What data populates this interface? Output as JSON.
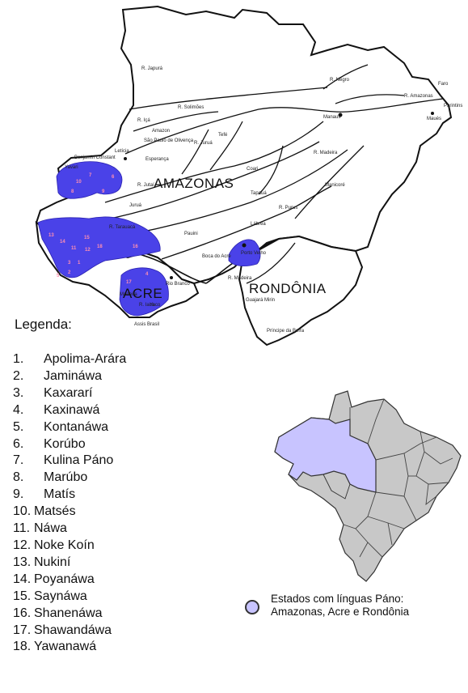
{
  "map": {
    "state_labels": {
      "amazonas": "AMAZONAS",
      "acre": "ACRE",
      "rondonia": "RONDÔNIA"
    },
    "places": [
      {
        "key": "japura",
        "label": "R. Japurá"
      },
      {
        "key": "solimoes",
        "label": "R. Solimões"
      },
      {
        "key": "ica",
        "label": "R. Içá"
      },
      {
        "key": "amazon",
        "label": "Amazon"
      },
      {
        "key": "spolivenca",
        "label": "São Paulo de Olivença"
      },
      {
        "key": "benjamin",
        "label": "Benjamin Constant"
      },
      {
        "key": "leticia",
        "label": "Letícia"
      },
      {
        "key": "esperanca",
        "label": "Esperança"
      },
      {
        "key": "jutai",
        "label": "R. Jutaí"
      },
      {
        "key": "jurua",
        "label": "R. Juruá"
      },
      {
        "key": "tefe",
        "label": "Tefé"
      },
      {
        "key": "coari",
        "label": "Coari"
      },
      {
        "key": "tapaua",
        "label": "Tapauá"
      },
      {
        "key": "purus",
        "label": "R. Purus"
      },
      {
        "key": "labrea",
        "label": "Lábrea"
      },
      {
        "key": "jurua2",
        "label": "Juruá"
      },
      {
        "key": "pauini",
        "label": "Pauini"
      },
      {
        "key": "boca",
        "label": "Boca do Acre"
      },
      {
        "key": "rioBranco",
        "label": "Rio Branco"
      },
      {
        "key": "pvelho",
        "label": "Porto Velho"
      },
      {
        "key": "manaus",
        "label": "Manaus"
      },
      {
        "key": "negro",
        "label": "R. Negro"
      },
      {
        "key": "ramazonas",
        "label": "R. Amazonas"
      },
      {
        "key": "faro",
        "label": "Faro"
      },
      {
        "key": "parintins",
        "label": "Parintins"
      },
      {
        "key": "maues",
        "label": "Maués"
      },
      {
        "key": "madeira",
        "label": "R. Madeira"
      },
      {
        "key": "manicore",
        "label": "Manicoré"
      },
      {
        "key": "rmadeira2",
        "label": "R. Madeira"
      },
      {
        "key": "guajara",
        "label": "Guajará Mirin"
      },
      {
        "key": "principe",
        "label": "Príncipe da Beira"
      },
      {
        "key": "assis",
        "label": "Assis Brasil"
      },
      {
        "key": "yavari",
        "label": "Yavari"
      },
      {
        "key": "iaco",
        "label": "R. Iaco"
      },
      {
        "key": "madeira_s",
        "label": "Madeira"
      },
      {
        "key": "tarauaca",
        "label": "R. Tarauacá"
      },
      {
        "key": "yaco",
        "label": "Yaco"
      }
    ],
    "region_numbers": [
      "10",
      "7",
      "6",
      "8",
      "9",
      "13",
      "14",
      "15",
      "11",
      "12",
      "18",
      "16",
      "3",
      "1",
      "2",
      "5",
      "4",
      "17"
    ]
  },
  "legend": {
    "title": "Legenda:",
    "items": [
      {
        "n": "1.",
        "name": "Apolima-Arára"
      },
      {
        "n": "2.",
        "name": "Jamináwa"
      },
      {
        "n": "3.",
        "name": "Kaxararí"
      },
      {
        "n": "4.",
        "name": "Kaxinawá"
      },
      {
        "n": "5.",
        "name": "Kontanáwa"
      },
      {
        "n": "6.",
        "name": "Korúbo"
      },
      {
        "n": "7.",
        "name": "Kulina Páno"
      },
      {
        "n": "8.",
        "name": "Marúbo"
      },
      {
        "n": "9.",
        "name": "Matís"
      },
      {
        "n": "10.",
        "name": "Matsés"
      },
      {
        "n": "11.",
        "name": "Náwa"
      },
      {
        "n": "12.",
        "name": "Noke Koín"
      },
      {
        "n": "13.",
        "name": "Nukiní"
      },
      {
        "n": "14.",
        "name": "Poyanáwa"
      },
      {
        "n": "15.",
        "name": "Saynáwa"
      },
      {
        "n": "16.",
        "name": "Shanenáwa"
      },
      {
        "n": "17.",
        "name": "Shawandáwa"
      },
      {
        "n": "18.",
        "name": "Yawanawá"
      }
    ]
  },
  "key": {
    "line1": "Estados com línguas Páno:",
    "line2": "Amazonas, Acre e Rondônia"
  },
  "colors": {
    "pano": "#4a42e8",
    "inset_highlight": "#c8c4ff",
    "inset_land": "#c8c8c8"
  }
}
